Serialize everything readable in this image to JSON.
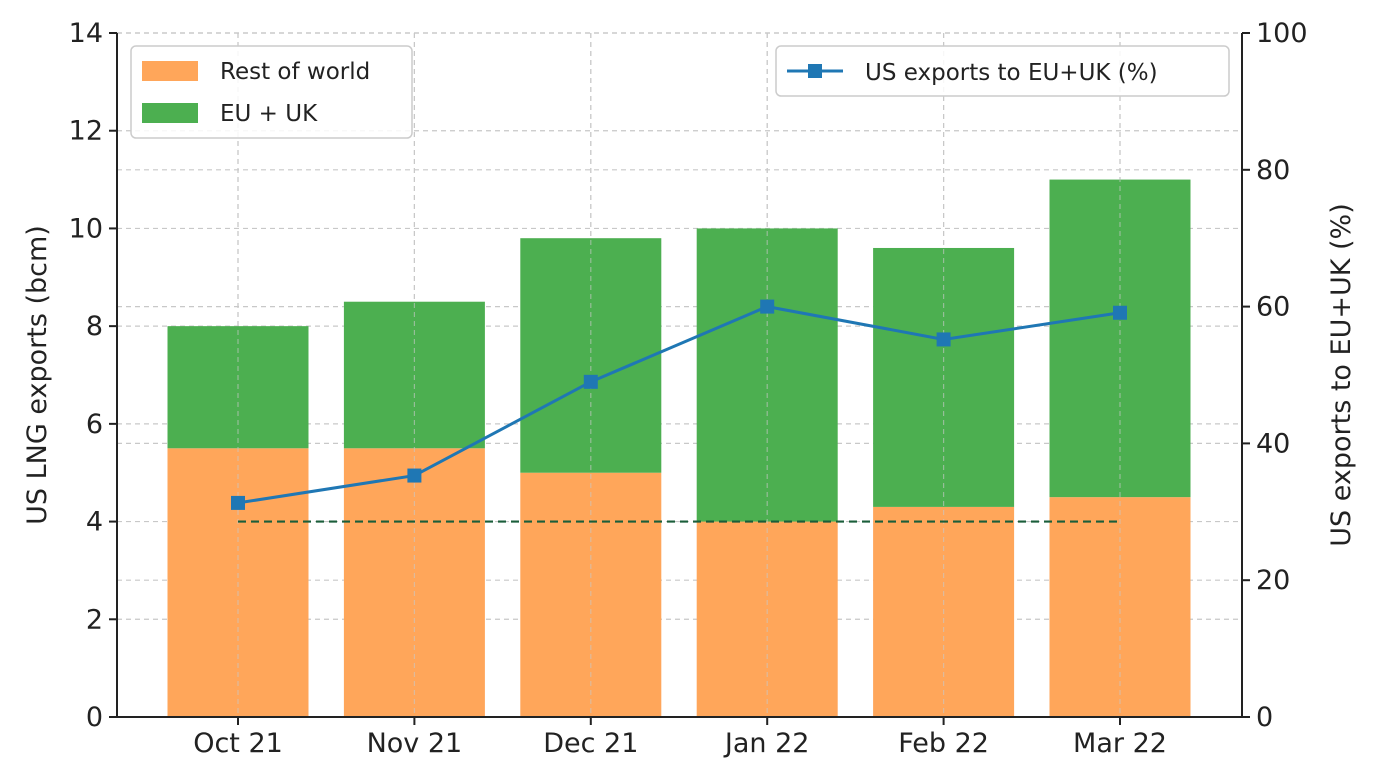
{
  "chart_data": {
    "type": "bar",
    "stacked": true,
    "categories": [
      "Oct 21",
      "Nov 21",
      "Dec 21",
      "Jan 22",
      "Feb 22",
      "Mar 22"
    ],
    "series": [
      {
        "name": "Rest of world",
        "values": [
          5.5,
          5.5,
          5.0,
          4.0,
          4.3,
          4.5
        ],
        "color": "#FFA65A",
        "axis": "left"
      },
      {
        "name": "EU + UK",
        "values": [
          2.5,
          3.0,
          4.8,
          6.0,
          5.3,
          6.5
        ],
        "color": "#4CAF50",
        "axis": "left"
      }
    ],
    "line_series": [
      {
        "name": "US exports to EU+UK (%)",
        "values": [
          31.3,
          35.3,
          49.0,
          60.0,
          55.2,
          59.1
        ],
        "color": "#1F77B4",
        "marker": "square",
        "axis": "right"
      }
    ],
    "reference_line": {
      "value": 4,
      "axis": "left",
      "style": "dashed",
      "color": "#1A5E3A",
      "from": "Oct 21",
      "to": "Mar 22"
    },
    "ylabel": "US LNG exports (bcm)",
    "ylabel_right": "US exports to EU+UK (%)",
    "ylim": [
      0,
      14
    ],
    "ylim_right": [
      0,
      100
    ],
    "yticks": [
      0,
      2,
      4,
      6,
      8,
      10,
      12,
      14
    ],
    "yticks_right": [
      0,
      20,
      40,
      60,
      80,
      100
    ],
    "grid": true,
    "legend_bars": "top-left",
    "legend_line": "top-right"
  }
}
